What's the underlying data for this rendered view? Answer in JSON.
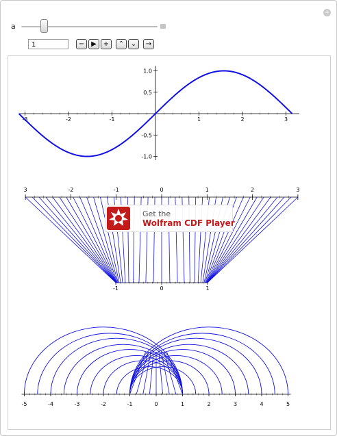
{
  "controls": {
    "parameter_label": "a",
    "value": "1",
    "slider_fraction": 0.17,
    "buttons": [
      "minus",
      "play",
      "plus",
      "faster",
      "slower",
      "direction"
    ]
  },
  "colors": {
    "curve": "#1010e0",
    "axis": "#000000",
    "banner_red": "#c31a1a"
  },
  "banner": {
    "line1": "Get the",
    "line2": "Wolfram CDF Player"
  },
  "chart_data": [
    {
      "type": "line",
      "function": "sin(x)",
      "x_range": [
        -3.14159,
        3.14159
      ],
      "ylim": [
        -1.0,
        1.0
      ],
      "x_ticks": [
        "-3",
        "-2",
        "-1",
        "1",
        "2",
        "3"
      ],
      "y_ticks": [
        "1.0",
        "0.5",
        "-0.5",
        "-1.0"
      ],
      "series": [
        {
          "x": [
            -3.14,
            -2.5,
            -2.0,
            -1.57,
            -1.0,
            -0.5,
            0,
            0.5,
            1.0,
            1.57,
            2.0,
            2.5,
            3.14
          ],
          "y": [
            0.0,
            -0.6,
            -0.91,
            -1.0,
            -0.84,
            -0.48,
            0.0,
            0.48,
            0.84,
            1.0,
            0.91,
            0.6,
            0.0
          ]
        }
      ]
    },
    {
      "type": "line",
      "description_shown": "segments from points on upper axis to points on lower axis",
      "top_axis_range": [
        -3,
        3
      ],
      "bottom_axis_range": [
        -1,
        1
      ],
      "top_ticks": [
        "3",
        "-2",
        "-1",
        "0",
        "1",
        "2",
        "3"
      ],
      "bottom_ticks": [
        "-1",
        "0",
        "1"
      ],
      "segment_count": 40
    },
    {
      "type": "line",
      "description_shown": "semicircular arcs between pairs of points on the x-axis",
      "x_range": [
        -5,
        5
      ],
      "x_ticks": [
        "-5",
        "-4",
        "-3",
        "-2",
        "-1",
        "0",
        "1",
        "2",
        "3",
        "4",
        "5"
      ],
      "arcs_left": [
        [
          -5,
          1
        ],
        [
          -4.5,
          1
        ],
        [
          -4,
          1
        ],
        [
          -3.5,
          1
        ],
        [
          -3,
          1
        ],
        [
          -2.5,
          1
        ],
        [
          -2,
          1
        ],
        [
          -1.5,
          1
        ]
      ],
      "arcs_right": [
        [
          -1,
          5
        ],
        [
          -1,
          4.5
        ],
        [
          -1,
          4
        ],
        [
          -1,
          3.5
        ],
        [
          -1,
          3
        ],
        [
          -1,
          2.5
        ],
        [
          -1,
          2
        ],
        [
          -1,
          1.5
        ]
      ]
    }
  ]
}
